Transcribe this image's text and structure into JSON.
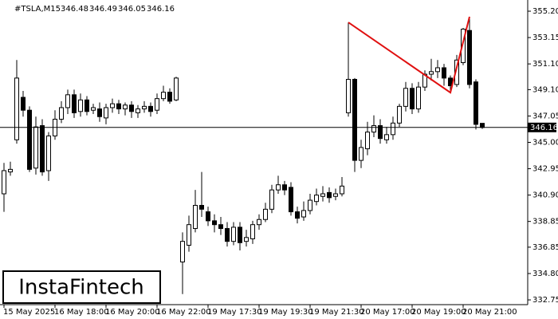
{
  "chart_data": {
    "type": "candlestick",
    "symbol": "#TSLA,M15",
    "header_values": [
      346.48,
      346.49,
      346.05,
      346.16
    ],
    "logo": "InstaFintech",
    "categories": [
      "15 May 2025",
      null,
      null,
      null,
      null,
      null,
      null,
      null,
      "16 May 18:00",
      null,
      null,
      null,
      null,
      null,
      null,
      null,
      "16 May 20:00",
      null,
      null,
      null,
      null,
      null,
      null,
      null,
      "16 May 22:00",
      null,
      null,
      null,
      null,
      null,
      null,
      null,
      "19 May 17:30",
      null,
      null,
      null,
      null,
      null,
      null,
      null,
      "19 May 19:30",
      null,
      null,
      null,
      null,
      null,
      null,
      null,
      "19 May 21:30",
      null,
      null,
      null,
      null,
      null,
      null,
      null,
      "20 May 17:00",
      null,
      null,
      null,
      null,
      null,
      null,
      null,
      "20 May 19:00",
      null,
      null,
      null,
      null,
      null,
      null,
      null,
      "20 May 21:00",
      null,
      null,
      null
    ],
    "open": [
      341.0,
      342.7,
      345.2,
      348.5,
      347.5,
      343.0,
      346.3,
      342.8,
      345.5,
      346.8,
      347.7,
      348.7,
      347.4,
      348.3,
      347.5,
      347.6,
      346.9,
      347.7,
      348.0,
      347.6,
      347.9,
      347.3,
      347.6,
      347.8,
      347.5,
      348.4,
      348.9,
      348.3,
      335.7,
      337.0,
      338.3,
      340.1,
      339.6,
      338.9,
      338.6,
      338.3,
      337.3,
      338.4,
      337.3,
      337.5,
      338.6,
      339.0,
      339.8,
      341.3,
      341.7,
      341.5,
      339.6,
      339.2,
      339.7,
      340.4,
      340.8,
      341.1,
      340.8,
      341.0,
      347.3,
      349.9,
      343.6,
      344.5,
      345.8,
      346.3,
      345.2,
      345.6,
      346.5,
      347.8,
      349.2,
      347.6,
      349.3,
      350.3,
      350.5,
      350.8,
      350.0,
      349.5,
      351.2,
      353.7,
      349.7,
      346.48
    ],
    "high": [
      343.4,
      343.5,
      351.4,
      349.0,
      347.8,
      347.0,
      346.8,
      345.8,
      347.5,
      348.2,
      349.1,
      349.1,
      348.8,
      348.6,
      348.0,
      348.1,
      348.0,
      348.4,
      348.3,
      348.1,
      348.2,
      347.9,
      348.2,
      348.1,
      348.8,
      349.4,
      349.2,
      350.1,
      338.0,
      339.3,
      341.3,
      342.7,
      340.0,
      339.4,
      339.2,
      338.8,
      338.8,
      338.8,
      338.2,
      338.9,
      339.4,
      340.3,
      341.7,
      342.4,
      342.0,
      341.9,
      340.0,
      340.4,
      341.0,
      341.4,
      341.6,
      341.5,
      341.4,
      342.3,
      354.33,
      350.0,
      345.2,
      346.6,
      347.1,
      346.8,
      346.2,
      347.0,
      348.0,
      349.7,
      349.6,
      349.7,
      350.6,
      351.5,
      351.4,
      351.1,
      350.2,
      351.8,
      353.9,
      354.77,
      349.9,
      346.49
    ],
    "low": [
      339.6,
      342.4,
      344.9,
      347.0,
      342.7,
      342.5,
      342.4,
      342.0,
      345.2,
      346.5,
      347.2,
      346.9,
      347.0,
      347.1,
      347.2,
      346.6,
      346.4,
      347.3,
      347.2,
      347.1,
      346.9,
      346.9,
      347.3,
      347.0,
      347.2,
      348.2,
      348.0,
      348.2,
      333.2,
      336.5,
      338.0,
      339.2,
      338.5,
      338.0,
      337.8,
      336.9,
      337.0,
      336.6,
      336.9,
      337.1,
      338.2,
      338.8,
      339.5,
      341.0,
      340.9,
      339.3,
      338.7,
      338.9,
      339.4,
      340.1,
      340.4,
      340.3,
      340.5,
      340.8,
      347.0,
      342.7,
      343.0,
      344.0,
      345.4,
      344.9,
      344.9,
      345.2,
      346.2,
      347.4,
      347.2,
      347.3,
      349.0,
      349.8,
      350.0,
      349.4,
      348.87,
      349.3,
      351.0,
      349.2,
      346.0,
      346.05
    ],
    "close": [
      342.8,
      342.9,
      350.0,
      347.5,
      342.9,
      346.2,
      342.7,
      345.5,
      346.8,
      347.7,
      348.7,
      347.3,
      348.3,
      347.4,
      347.7,
      347.0,
      347.7,
      348.0,
      347.6,
      347.9,
      347.4,
      347.6,
      347.8,
      347.4,
      348.4,
      348.9,
      348.2,
      350.0,
      337.3,
      338.6,
      340.1,
      339.8,
      338.9,
      338.6,
      338.3,
      337.3,
      338.4,
      337.2,
      337.6,
      338.6,
      339.0,
      339.8,
      341.3,
      341.7,
      341.3,
      339.6,
      339.1,
      339.7,
      340.5,
      340.9,
      341.0,
      340.7,
      341.0,
      341.6,
      349.9,
      343.6,
      344.6,
      345.8,
      346.3,
      345.3,
      345.6,
      346.5,
      347.8,
      349.2,
      347.6,
      349.3,
      350.3,
      350.5,
      350.8,
      350.0,
      349.4,
      351.4,
      353.8,
      349.5,
      346.4,
      346.16
    ],
    "last_price": 346.16,
    "pattern": {
      "color": "#e01010",
      "x": [
        54,
        70,
        73
      ],
      "y": [
        354.33,
        348.87,
        354.77
      ]
    },
    "ylim": [
      332.38,
      356.07
    ],
    "yticks": [
      {
        "value": 355.2,
        "label": "355.20"
      },
      353.15,
      {
        "value": 351.1,
        "label": "351.10"
      },
      {
        "value": 349.1,
        "label": "349.10"
      },
      347.05,
      {
        "value": 345.0,
        "label": "345.00"
      },
      342.95,
      {
        "value": 340.9,
        "label": "340.90"
      },
      338.85,
      336.85,
      {
        "value": 334.8,
        "label": "334.80"
      },
      332.75
    ],
    "grid": false
  }
}
